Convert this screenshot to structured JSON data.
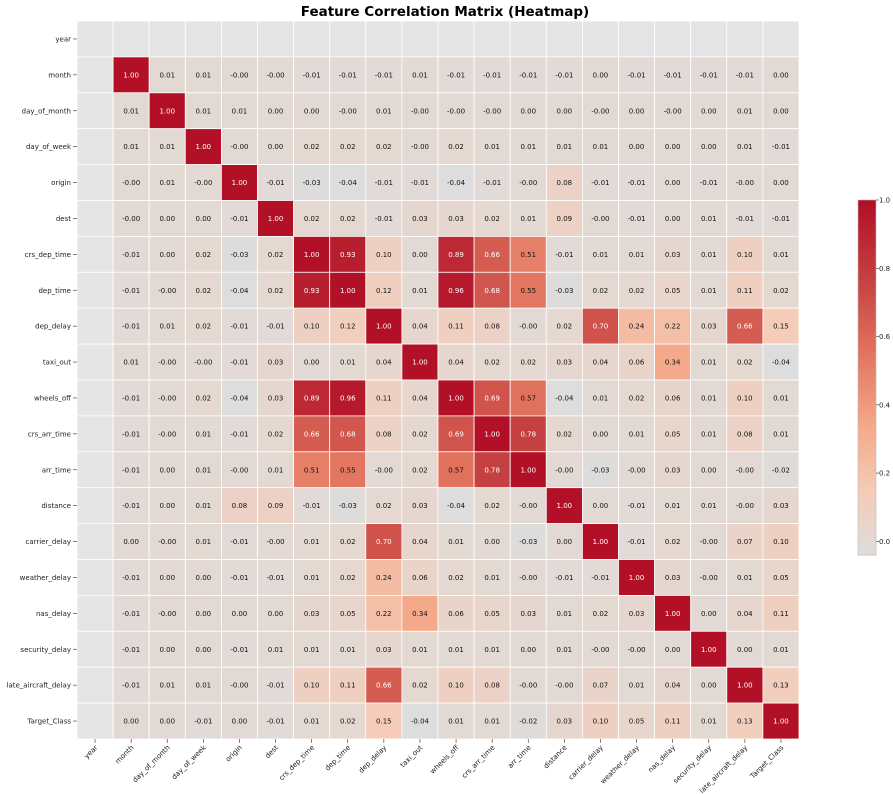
{
  "chart_data": {
    "type": "heatmap",
    "title": "Feature Correlation Matrix (Heatmap)",
    "labels": [
      "year",
      "month",
      "day_of_month",
      "day_of_week",
      "origin",
      "dest",
      "crs_dep_time",
      "dep_time",
      "dep_delay",
      "taxi_out",
      "wheels_off",
      "crs_arr_time",
      "arr_time",
      "distance",
      "carrier_delay",
      "weather_delay",
      "nas_delay",
      "security_delay",
      "late_aircraft_delay",
      "Target_Class"
    ],
    "values": [
      [
        null,
        null,
        null,
        null,
        null,
        null,
        null,
        null,
        null,
        null,
        null,
        null,
        null,
        null,
        null,
        null,
        null,
        null,
        null,
        null
      ],
      [
        null,
        1.0,
        0.01,
        0.01,
        -0.0,
        -0.0,
        -0.01,
        -0.01,
        -0.01,
        0.01,
        -0.01,
        -0.01,
        -0.01,
        -0.01,
        0.0,
        -0.01,
        -0.01,
        -0.01,
        -0.01,
        0.0
      ],
      [
        null,
        0.01,
        1.0,
        0.01,
        0.01,
        0.0,
        0.0,
        -0.0,
        0.01,
        -0.0,
        -0.0,
        -0.0,
        0.0,
        0.0,
        -0.0,
        0.0,
        -0.0,
        0.0,
        0.01,
        0.0
      ],
      [
        null,
        0.01,
        0.01,
        1.0,
        -0.0,
        0.0,
        0.02,
        0.02,
        0.02,
        -0.0,
        0.02,
        0.01,
        0.01,
        0.01,
        0.01,
        0.0,
        0.0,
        0.0,
        0.01,
        -0.01
      ],
      [
        null,
        -0.0,
        0.01,
        -0.0,
        1.0,
        -0.01,
        -0.03,
        -0.04,
        -0.01,
        -0.01,
        -0.04,
        -0.01,
        -0.0,
        0.08,
        -0.01,
        -0.01,
        0.0,
        -0.01,
        -0.0,
        0.0
      ],
      [
        null,
        -0.0,
        0.0,
        0.0,
        -0.01,
        1.0,
        0.02,
        0.02,
        -0.01,
        0.03,
        0.03,
        0.02,
        0.01,
        0.09,
        -0.0,
        -0.01,
        0.0,
        0.01,
        -0.01,
        -0.01
      ],
      [
        null,
        -0.01,
        0.0,
        0.02,
        -0.03,
        0.02,
        1.0,
        0.93,
        0.1,
        0.0,
        0.89,
        0.66,
        0.51,
        -0.01,
        0.01,
        0.01,
        0.03,
        0.01,
        0.1,
        0.01
      ],
      [
        null,
        -0.01,
        -0.0,
        0.02,
        -0.04,
        0.02,
        0.93,
        1.0,
        0.12,
        0.01,
        0.96,
        0.68,
        0.55,
        -0.03,
        0.02,
        0.02,
        0.05,
        0.01,
        0.11,
        0.02
      ],
      [
        null,
        -0.01,
        0.01,
        0.02,
        -0.01,
        -0.01,
        0.1,
        0.12,
        1.0,
        0.04,
        0.11,
        0.08,
        -0.0,
        0.02,
        0.7,
        0.24,
        0.22,
        0.03,
        0.66,
        0.15
      ],
      [
        null,
        0.01,
        -0.0,
        -0.0,
        -0.01,
        0.03,
        0.0,
        0.01,
        0.04,
        1.0,
        0.04,
        0.02,
        0.02,
        0.03,
        0.04,
        0.06,
        0.34,
        0.01,
        0.02,
        -0.04
      ],
      [
        null,
        -0.01,
        -0.0,
        0.02,
        -0.04,
        0.03,
        0.89,
        0.96,
        0.11,
        0.04,
        1.0,
        0.69,
        0.57,
        -0.04,
        0.01,
        0.02,
        0.06,
        0.01,
        0.1,
        0.01
      ],
      [
        null,
        -0.01,
        -0.0,
        0.01,
        -0.01,
        0.02,
        0.66,
        0.68,
        0.08,
        0.02,
        0.69,
        1.0,
        0.78,
        0.02,
        0.0,
        0.01,
        0.05,
        0.01,
        0.08,
        0.01
      ],
      [
        null,
        -0.01,
        0.0,
        0.01,
        -0.0,
        0.01,
        0.51,
        0.55,
        -0.0,
        0.02,
        0.57,
        0.78,
        1.0,
        -0.0,
        -0.03,
        -0.0,
        0.03,
        0.0,
        -0.0,
        -0.02
      ],
      [
        null,
        -0.01,
        0.0,
        0.01,
        0.08,
        0.09,
        -0.01,
        -0.03,
        0.02,
        0.03,
        -0.04,
        0.02,
        -0.0,
        1.0,
        0.0,
        -0.01,
        0.01,
        0.01,
        -0.0,
        0.03
      ],
      [
        null,
        0.0,
        -0.0,
        0.01,
        -0.01,
        -0.0,
        0.01,
        0.02,
        0.7,
        0.04,
        0.01,
        0.0,
        -0.03,
        0.0,
        1.0,
        -0.01,
        0.02,
        -0.0,
        0.07,
        0.1
      ],
      [
        null,
        -0.01,
        0.0,
        0.0,
        -0.01,
        -0.01,
        0.01,
        0.02,
        0.24,
        0.06,
        0.02,
        0.01,
        -0.0,
        -0.01,
        -0.01,
        1.0,
        0.03,
        -0.0,
        0.01,
        0.05
      ],
      [
        null,
        -0.01,
        -0.0,
        0.0,
        0.0,
        0.0,
        0.03,
        0.05,
        0.22,
        0.34,
        0.06,
        0.05,
        0.03,
        0.01,
        0.02,
        0.03,
        1.0,
        0.0,
        0.04,
        0.11
      ],
      [
        null,
        -0.01,
        0.0,
        0.0,
        -0.01,
        0.01,
        0.01,
        0.01,
        0.03,
        0.01,
        0.01,
        0.01,
        0.0,
        0.01,
        -0.0,
        -0.0,
        0.0,
        1.0,
        0.0,
        0.01
      ],
      [
        null,
        -0.01,
        0.01,
        0.01,
        -0.0,
        -0.01,
        0.1,
        0.11,
        0.66,
        0.02,
        0.1,
        0.08,
        -0.0,
        -0.0,
        0.07,
        0.01,
        0.04,
        0.0,
        1.0,
        0.13
      ],
      [
        null,
        0.0,
        0.0,
        -0.01,
        0.0,
        -0.01,
        0.01,
        0.02,
        0.15,
        -0.04,
        0.01,
        0.01,
        -0.02,
        0.03,
        0.1,
        0.05,
        0.11,
        0.01,
        0.13,
        1.0
      ]
    ],
    "missing_color": "#e5e5e5",
    "colormap": "coolwarm",
    "colorbar": {
      "range": [
        -0.04,
        1.0
      ],
      "ticks": [
        0.0,
        0.2,
        0.4,
        0.6,
        0.8,
        1.0
      ],
      "tick_labels": [
        "0.0",
        "0.2",
        "0.4",
        "0.6",
        "0.8",
        "1.0"
      ]
    },
    "xlabel": "",
    "ylabel": "",
    "grid": true
  }
}
